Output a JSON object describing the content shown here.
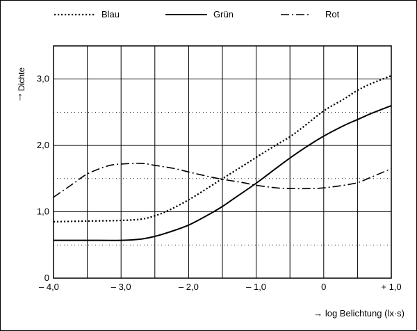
{
  "chart_data": {
    "type": "line",
    "title": "",
    "xlabel": "→ log Belichtung (lx·s)",
    "ylabel": "Dichte",
    "ylabel_arrow": "↑",
    "xlim": [
      -4.0,
      1.0
    ],
    "ylim": [
      0,
      3.5
    ],
    "x_ticks": [
      {
        "value": -4.0,
        "label": "– 4,0"
      },
      {
        "value": -3.0,
        "label": "– 3,0"
      },
      {
        "value": -2.0,
        "label": "– 2,0"
      },
      {
        "value": -1.0,
        "label": "– 1,0"
      },
      {
        "value": 0.0,
        "label": "0"
      },
      {
        "value": 1.0,
        "label": "+ 1,0"
      }
    ],
    "y_ticks": [
      {
        "value": 0.0,
        "label": "0"
      },
      {
        "value": 1.0,
        "label": "1,0"
      },
      {
        "value": 2.0,
        "label": "2,0"
      },
      {
        "value": 3.0,
        "label": "3,0"
      }
    ],
    "grid": {
      "vertical_step": 0.5,
      "horizontal_dotted": [
        0.5,
        1.5,
        2.5
      ]
    },
    "legend_placement": "top",
    "series": [
      {
        "name": "Blau",
        "dash": "dotted",
        "x": [
          -4.0,
          -3.5,
          -3.0,
          -2.7,
          -2.5,
          -2.3,
          -2.0,
          -1.7,
          -1.5,
          -1.2,
          -1.0,
          -0.7,
          -0.5,
          -0.3,
          0.0,
          0.3,
          0.5,
          0.7,
          1.0
        ],
        "y": [
          0.85,
          0.86,
          0.87,
          0.89,
          0.94,
          1.02,
          1.18,
          1.37,
          1.5,
          1.69,
          1.82,
          2.01,
          2.13,
          2.28,
          2.52,
          2.7,
          2.83,
          2.93,
          3.05
        ]
      },
      {
        "name": "Grün",
        "dash": "solid",
        "x": [
          -4.0,
          -3.5,
          -3.0,
          -2.7,
          -2.5,
          -2.3,
          -2.0,
          -1.7,
          -1.5,
          -1.3,
          -1.0,
          -0.7,
          -0.5,
          -0.3,
          0.0,
          0.3,
          0.5,
          0.7,
          1.0
        ],
        "y": [
          0.57,
          0.57,
          0.57,
          0.59,
          0.63,
          0.69,
          0.8,
          0.96,
          1.08,
          1.22,
          1.43,
          1.66,
          1.81,
          1.95,
          2.14,
          2.3,
          2.39,
          2.48,
          2.6
        ]
      },
      {
        "name": "Rot",
        "dash": "dash-dot",
        "x": [
          -4.0,
          -3.7,
          -3.5,
          -3.2,
          -3.0,
          -2.7,
          -2.5,
          -2.2,
          -2.0,
          -1.7,
          -1.5,
          -1.2,
          -1.0,
          -0.7,
          -0.5,
          -0.2,
          0.0,
          0.3,
          0.5,
          0.7,
          1.0
        ],
        "y": [
          1.22,
          1.43,
          1.57,
          1.69,
          1.72,
          1.73,
          1.7,
          1.65,
          1.6,
          1.53,
          1.49,
          1.44,
          1.4,
          1.36,
          1.35,
          1.35,
          1.36,
          1.4,
          1.44,
          1.52,
          1.65
        ]
      }
    ]
  }
}
